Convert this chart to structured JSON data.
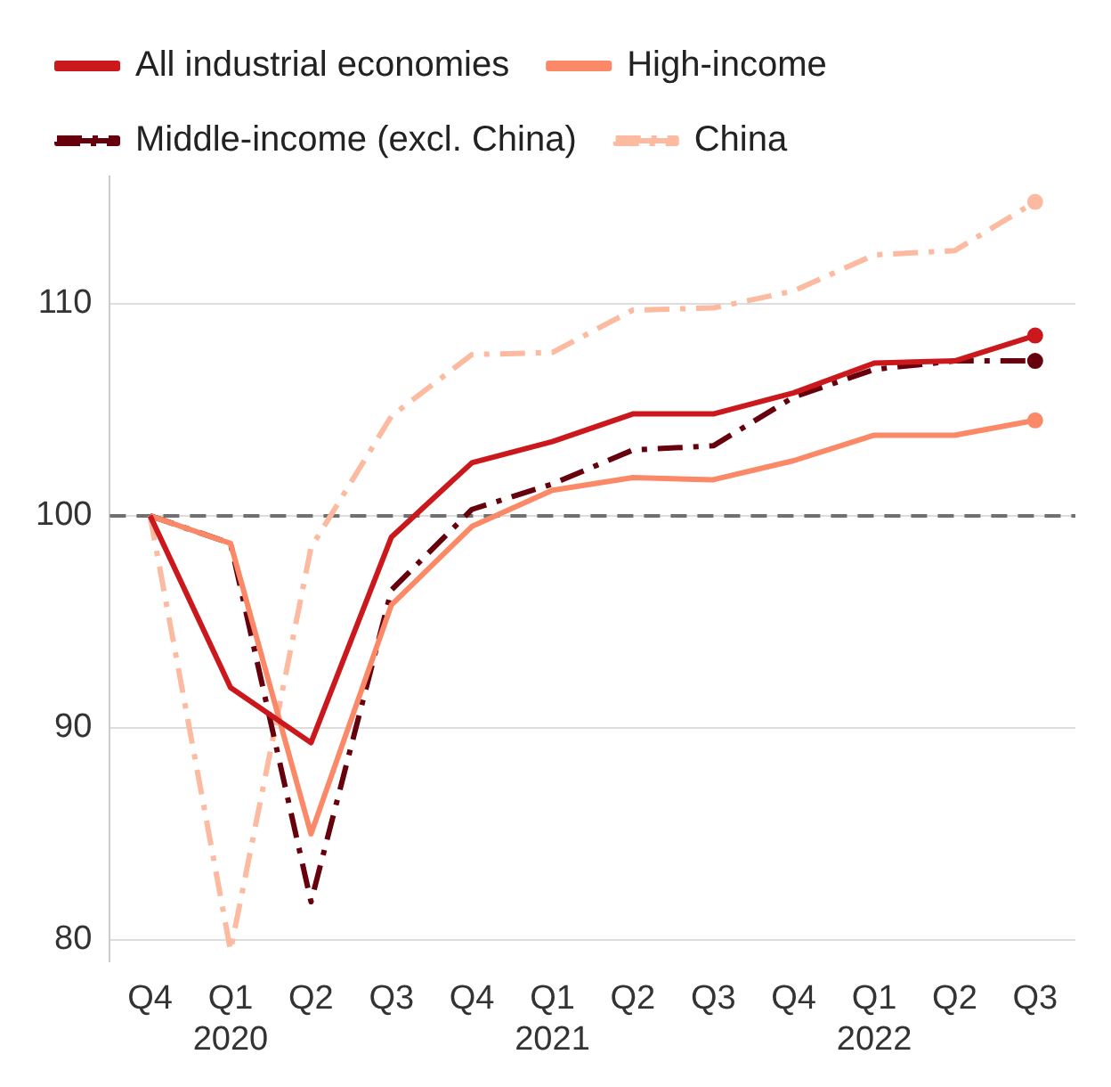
{
  "chart_data": {
    "type": "line",
    "categories": [
      "Q4",
      "Q1\n2020",
      "Q2",
      "Q3",
      "Q4",
      "Q1\n2021",
      "Q2",
      "Q3",
      "Q4",
      "Q1\n2022",
      "Q2",
      "Q3"
    ],
    "series": [
      {
        "name": "All industrial economies",
        "color": "#cb181d",
        "line_style": "solid",
        "values": [
          100,
          91.9,
          89.3,
          99.0,
          102.5,
          103.5,
          104.8,
          104.8,
          105.8,
          107.2,
          107.3,
          108.5
        ]
      },
      {
        "name": "High-income",
        "color": "#fb8866",
        "line_style": "solid",
        "values": [
          100,
          98.7,
          85.0,
          95.8,
          99.5,
          101.2,
          101.8,
          101.7,
          102.6,
          103.8,
          103.8,
          104.5
        ]
      },
      {
        "name": "Middle-income (excl. China)",
        "color": "#67000d",
        "line_style": "dashed",
        "values": [
          100,
          98.7,
          81.8,
          96.5,
          100.3,
          101.5,
          103.1,
          103.3,
          105.6,
          106.9,
          107.3,
          107.3
        ]
      },
      {
        "name": "China",
        "color": "#fcbba1",
        "line_style": "dashed",
        "values": [
          100,
          79.5,
          98.5,
          104.7,
          107.6,
          107.7,
          109.7,
          109.8,
          110.6,
          112.3,
          112.5,
          114.8
        ]
      }
    ],
    "ylim": [
      79,
      116
    ],
    "yticks": [
      80,
      90,
      100,
      110
    ],
    "grid": "y",
    "legend": "top",
    "ref_lines": [
      {
        "axis": "y",
        "value": 100,
        "color": "#707070",
        "line_style": "dashed"
      }
    ]
  }
}
